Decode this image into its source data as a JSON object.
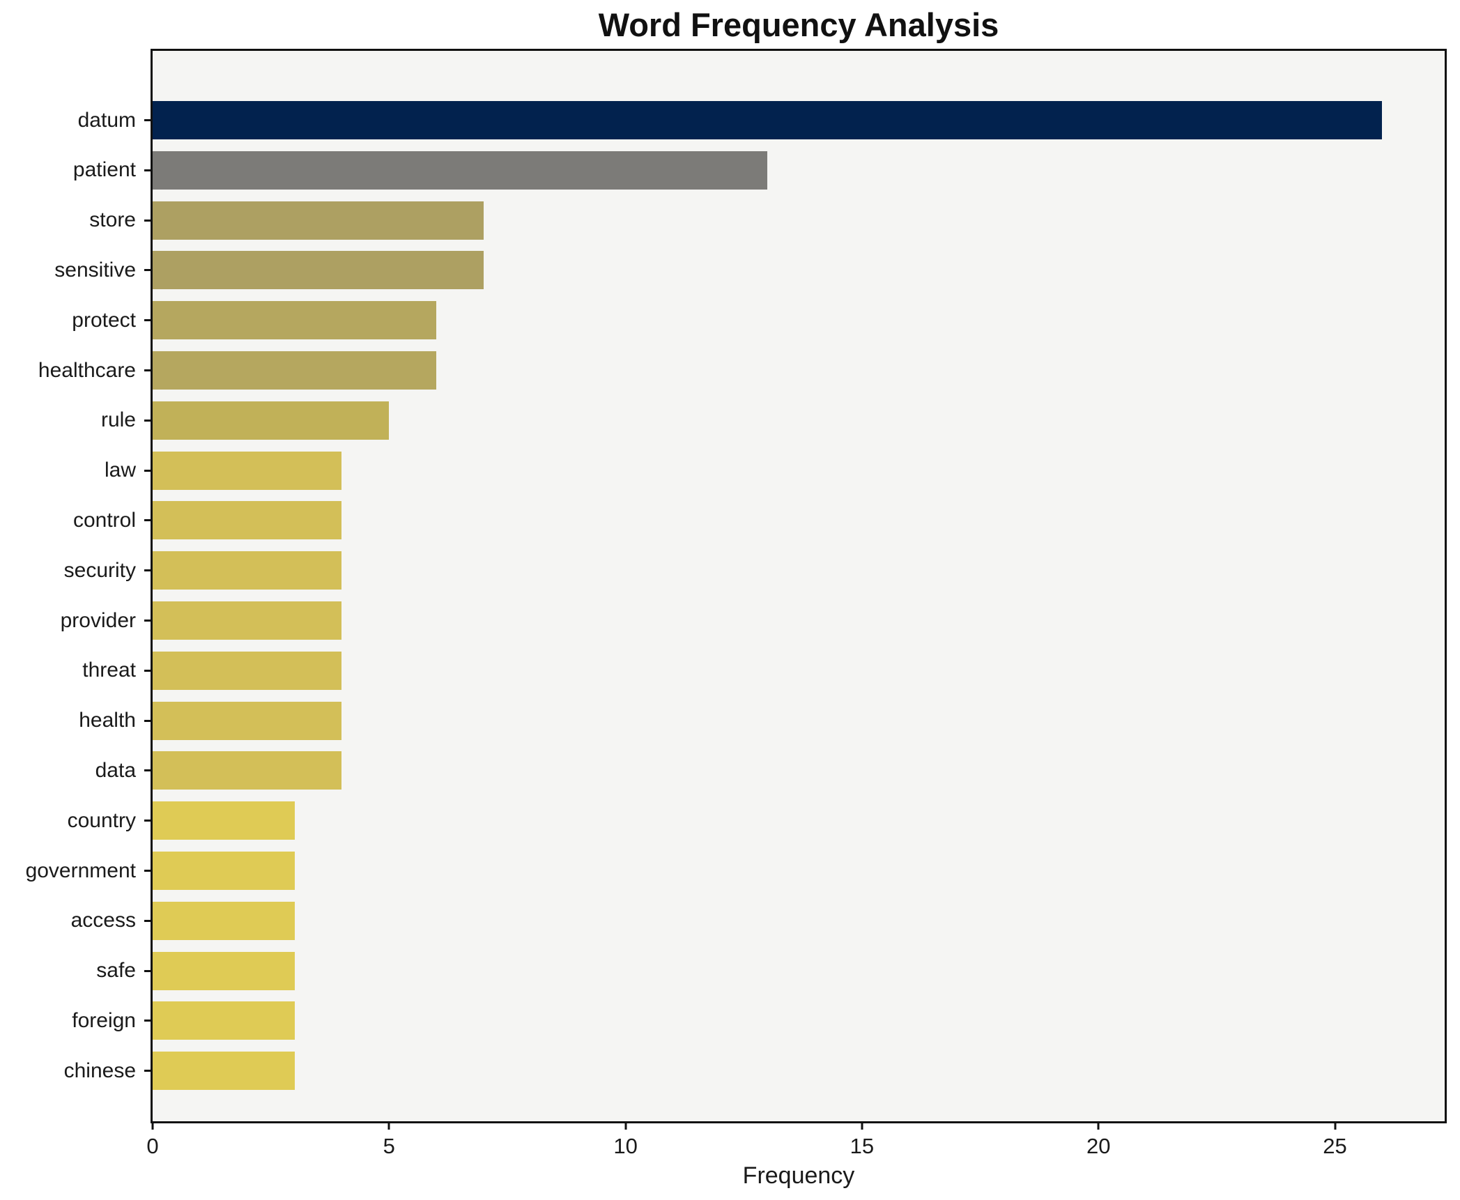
{
  "chart_data": {
    "type": "bar",
    "orientation": "horizontal",
    "title": "Word Frequency Analysis",
    "xlabel": "Frequency",
    "ylabel": "",
    "categories": [
      "datum",
      "patient",
      "store",
      "sensitive",
      "protect",
      "healthcare",
      "rule",
      "law",
      "control",
      "security",
      "provider",
      "threat",
      "health",
      "data",
      "country",
      "government",
      "access",
      "safe",
      "foreign",
      "chinese"
    ],
    "values": [
      26,
      13,
      7,
      7,
      6,
      6,
      5,
      4,
      4,
      4,
      4,
      4,
      4,
      4,
      3,
      3,
      3,
      3,
      3,
      3
    ],
    "bar_colors": [
      "#02224e",
      "#7c7b78",
      "#ada062",
      "#ada062",
      "#b5a75f",
      "#b5a75f",
      "#c1b158",
      "#d3bf58",
      "#d3bf58",
      "#d3bf58",
      "#d3bf58",
      "#d3bf58",
      "#d3bf58",
      "#d3bf58",
      "#dfcb55",
      "#dfcb55",
      "#dfcb55",
      "#dfcb55",
      "#dfcb55",
      "#dfcb55"
    ],
    "xticks": [
      0,
      5,
      10,
      15,
      20,
      25
    ],
    "xlim": [
      0,
      27.32
    ],
    "grid": false,
    "legend": null,
    "plot_bg_color": "#f5f5f3",
    "figure_bg_color": "#ffffff",
    "spine_color": "#111111"
  }
}
